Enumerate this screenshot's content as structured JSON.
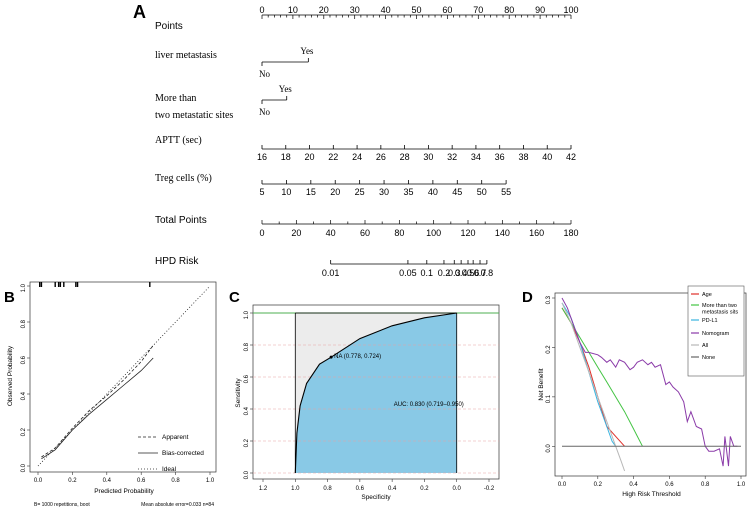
{
  "panels": {
    "A": "A",
    "B": "B",
    "C": "C",
    "D": "D"
  },
  "chart_data": [
    {
      "type": "nomogram",
      "rows": [
        {
          "label": "Points",
          "ticks": [
            0,
            10,
            20,
            30,
            40,
            50,
            60,
            70,
            80,
            90,
            100
          ],
          "range": [
            0,
            100
          ]
        },
        {
          "label": "liver metastasis",
          "levels": [
            {
              "name": "No",
              "points": 0
            },
            {
              "name": "Yes",
              "points": 15
            }
          ]
        },
        {
          "label": "More than",
          "label2": "two metastatic sites",
          "levels": [
            {
              "name": "No",
              "points": 0
            },
            {
              "name": "Yes",
              "points": 8
            }
          ]
        },
        {
          "label": "APTT (sec)",
          "ticks": [
            16,
            18,
            20,
            22,
            24,
            26,
            28,
            30,
            32,
            34,
            36,
            38,
            40,
            42
          ],
          "points_range": [
            0,
            100
          ]
        },
        {
          "label": "Treg cells (%)",
          "ticks": [
            5,
            10,
            15,
            20,
            25,
            30,
            35,
            40,
            45,
            50,
            55
          ],
          "points_range": [
            0,
            79
          ]
        },
        {
          "label": "Total Points",
          "ticks": [
            0,
            20,
            40,
            60,
            80,
            100,
            120,
            140,
            160,
            180
          ],
          "range": [
            0,
            180
          ]
        },
        {
          "label": "HPD Risk",
          "ticks": [
            "0.01",
            "0.05",
            "0.1",
            "0.2",
            "0.3",
            "0.4",
            "0.5",
            "0.6",
            "0.7",
            "0.8"
          ],
          "total_points_at": [
            40,
            85,
            96,
            106,
            112,
            116,
            120,
            123,
            127,
            131
          ]
        }
      ]
    },
    {
      "type": "line",
      "xlabel": "Predicted Probability",
      "ylabel": "Observed Probability",
      "xlim": [
        0,
        1
      ],
      "ylim": [
        0,
        1
      ],
      "xticks": [
        "0.0",
        "0.2",
        "0.4",
        "0.6",
        "0.8",
        "1.0"
      ],
      "yticks": [
        "0.0",
        "0.2",
        "0.4",
        "0.6",
        "0.8",
        "1.0"
      ],
      "series": [
        {
          "name": "Apparent",
          "style": "dashed",
          "x": [
            0.02,
            0.1,
            0.2,
            0.3,
            0.4,
            0.5,
            0.6,
            0.67
          ],
          "y": [
            0.05,
            0.1,
            0.21,
            0.31,
            0.39,
            0.48,
            0.58,
            0.67
          ]
        },
        {
          "name": "Bias-corrected",
          "style": "solid",
          "x": [
            0.02,
            0.1,
            0.2,
            0.3,
            0.4,
            0.5,
            0.6,
            0.67
          ],
          "y": [
            0.04,
            0.09,
            0.2,
            0.29,
            0.37,
            0.45,
            0.53,
            0.6
          ]
        },
        {
          "name": "Ideal",
          "style": "dotted",
          "x": [
            0,
            1
          ],
          "y": [
            0,
            1
          ]
        }
      ],
      "rug_x": [
        0.01,
        0.02,
        0.1,
        0.12,
        0.13,
        0.15,
        0.22,
        0.23,
        0.65
      ],
      "footnote_left": "B= 1000 repetitions, boot",
      "footnote_right": "Mean absolute error=0.033 n=84"
    },
    {
      "type": "area",
      "xlabel": "Specificity",
      "ylabel": "Sensitivity",
      "xlim": [
        1.2,
        -0.2
      ],
      "ylim": [
        0,
        1
      ],
      "xticks": [
        "1.2",
        "1.0",
        "0.8",
        "0.6",
        "0.4",
        "0.2",
        "0.0",
        "-0.2"
      ],
      "yticks": [
        "0.0",
        "0.2",
        "0.4",
        "0.6",
        "0.8",
        "1.0"
      ],
      "roc": {
        "specificity": [
          1.0,
          0.99,
          0.97,
          0.93,
          0.85,
          0.778,
          0.6,
          0.4,
          0.2,
          0.0
        ],
        "sensitivity": [
          0.0,
          0.25,
          0.42,
          0.56,
          0.68,
          0.724,
          0.84,
          0.92,
          0.97,
          1.0
        ]
      },
      "colors": {
        "auc_fill": "#89c9e6",
        "upper_fill": "#ececec",
        "grid": "#e8a2a2",
        "top_line": "#4caf50"
      },
      "point_label": "NA (0.778, 0.724)",
      "auc_label": "AUC: 0.830 (0.719–0.950)"
    },
    {
      "type": "line",
      "xlabel": "High Risk Threshold",
      "ylabel": "Net Benefit",
      "xlim": [
        0,
        1
      ],
      "ylim": [
        -0.05,
        0.3
      ],
      "xticks": [
        "0.0",
        "0.2",
        "0.4",
        "0.6",
        "0.8",
        "1.0"
      ],
      "yticks": [
        "0.0",
        "0.1",
        "0.2",
        "0.3"
      ],
      "legend_position": "top-right",
      "series": [
        {
          "name": "Age",
          "color": "#e0302a",
          "x": [
            0,
            0.05,
            0.1,
            0.15,
            0.2,
            0.25,
            0.3,
            0.35
          ],
          "y": [
            0.28,
            0.25,
            0.21,
            0.16,
            0.1,
            0.04,
            0.02,
            0.0
          ]
        },
        {
          "name": "More than two metastasis sits",
          "color": "#44c444",
          "x": [
            0,
            0.05,
            0.1,
            0.15,
            0.2,
            0.25,
            0.3,
            0.35,
            0.4,
            0.45
          ],
          "y": [
            0.28,
            0.25,
            0.22,
            0.19,
            0.16,
            0.13,
            0.1,
            0.07,
            0.035,
            0.0
          ]
        },
        {
          "name": "PD-L1",
          "color": "#3ab4e0",
          "x": [
            0,
            0.05,
            0.1,
            0.15,
            0.2,
            0.25,
            0.28,
            0.3
          ],
          "y": [
            0.29,
            0.26,
            0.21,
            0.15,
            0.09,
            0.04,
            0.01,
            0.0
          ]
        },
        {
          "name": "Nomogram",
          "color": "#8a3aa8",
          "x": [
            0,
            0.03,
            0.06,
            0.1,
            0.13,
            0.15,
            0.2,
            0.22,
            0.25,
            0.27,
            0.3,
            0.32,
            0.35,
            0.38,
            0.4,
            0.42,
            0.45,
            0.48,
            0.5,
            0.52,
            0.55,
            0.58,
            0.6,
            0.62,
            0.65,
            0.68,
            0.7,
            0.72,
            0.75,
            0.78,
            0.8,
            0.82,
            0.85,
            0.88,
            0.9,
            0.91,
            0.93,
            0.94,
            0.96,
            0.98
          ],
          "y": [
            0.3,
            0.28,
            0.25,
            0.21,
            0.19,
            0.19,
            0.185,
            0.18,
            0.17,
            0.175,
            0.16,
            0.175,
            0.17,
            0.155,
            0.16,
            0.17,
            0.175,
            0.165,
            0.17,
            0.16,
            0.165,
            0.125,
            0.13,
            0.12,
            0.11,
            0.09,
            0.05,
            0.07,
            0.04,
            0.035,
            0.0,
            -0.01,
            -0.01,
            -0.005,
            -0.04,
            0.02,
            -0.04,
            0.02,
            0.0,
            0.0
          ]
        },
        {
          "name": "All",
          "color": "#b8b8b8",
          "x": [
            0,
            0.05,
            0.1,
            0.15,
            0.2,
            0.25,
            0.3,
            0.33,
            0.35
          ],
          "y": [
            0.29,
            0.25,
            0.2,
            0.15,
            0.1,
            0.05,
            0.0,
            -0.03,
            -0.05
          ]
        },
        {
          "name": "None",
          "color": "#666666",
          "x": [
            0,
            1
          ],
          "y": [
            0,
            0
          ]
        }
      ]
    }
  ]
}
